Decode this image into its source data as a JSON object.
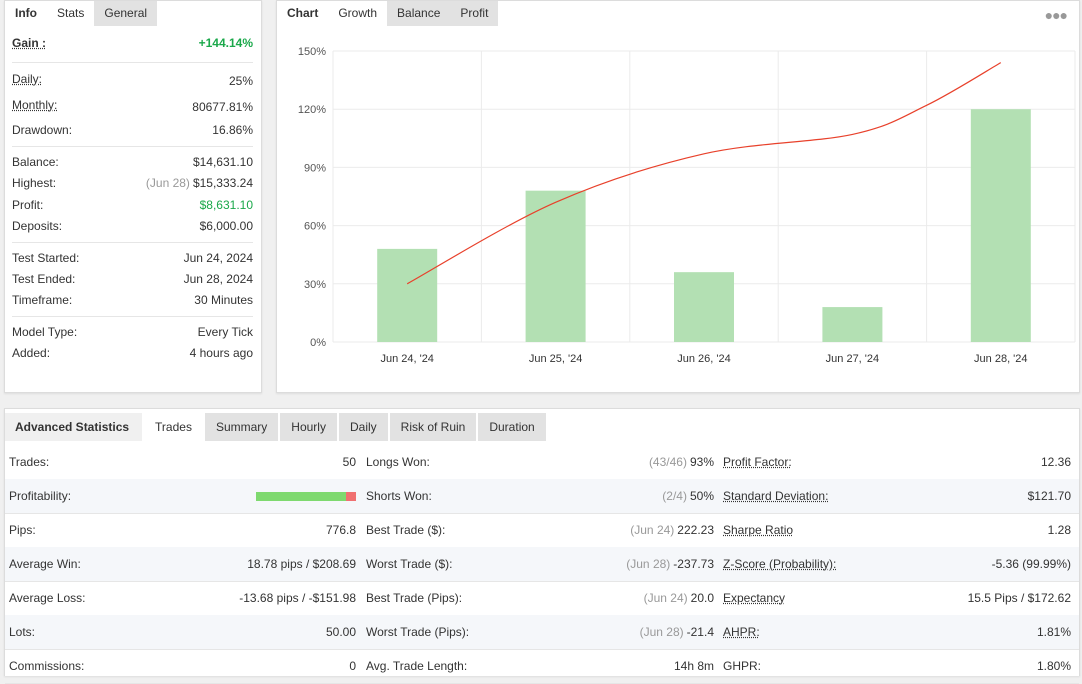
{
  "info_tabs": [
    "Info",
    "Stats",
    "General"
  ],
  "info": {
    "gain_label": "Gain :",
    "gain_value": "+144.14%",
    "daily_label": "Daily:",
    "daily_value": "25%",
    "monthly_label": "Monthly:",
    "monthly_value": "80677.81%",
    "drawdown_label": "Drawdown:",
    "drawdown_value": "16.86%",
    "balance_label": "Balance:",
    "balance_value": "$14,631.10",
    "highest_label": "Highest:",
    "highest_date": "(Jun 28)",
    "highest_value": "$15,333.24",
    "profit_label": "Profit:",
    "profit_value": "$8,631.10",
    "deposits_label": "Deposits:",
    "deposits_value": "$6,000.00",
    "test_started_label": "Test Started:",
    "test_started_value": "Jun 24, 2024",
    "test_ended_label": "Test Ended:",
    "test_ended_value": "Jun 28, 2024",
    "timeframe_label": "Timeframe:",
    "timeframe_value": "30 Minutes",
    "model_type_label": "Model Type:",
    "model_type_value": "Every Tick",
    "added_label": "Added:",
    "added_value": "4 hours ago"
  },
  "chart_tabs": [
    "Chart",
    "Growth",
    "Balance",
    "Profit"
  ],
  "more_icon": "ellipsis-icon",
  "colors": {
    "bar": "#b3e0b3",
    "line": "#e8412b",
    "gain": "#1aa84a",
    "loss_bar": "#f07070",
    "win_bar": "#7ed96f"
  },
  "chart_data": {
    "type": "bar",
    "categories": [
      "Jun 24, '24",
      "Jun 25, '24",
      "Jun 26, '24",
      "Jun 27, '24",
      "Jun 28, '24"
    ],
    "series": [
      {
        "type": "bar",
        "values": [
          48,
          78,
          36,
          18,
          120
        ]
      },
      {
        "type": "line",
        "x": [
          0,
          1,
          2,
          3,
          3.5,
          4
        ],
        "values": [
          30,
          72,
          97,
          107,
          122,
          144
        ]
      }
    ],
    "y_ticks": [
      "150%",
      "120%",
      "90%",
      "60%",
      "30%",
      "0%"
    ],
    "ylim": [
      0,
      150
    ],
    "grid": true
  },
  "stats_tabs": [
    "Advanced Statistics",
    "Trades",
    "Summary",
    "Hourly",
    "Daily",
    "Risk of Ruin",
    "Duration"
  ],
  "stats": {
    "col1": [
      {
        "label": "Trades:",
        "value": "50"
      },
      {
        "label": "Profitability:",
        "value": ""
      },
      {
        "label": "Pips:",
        "value": "776.8"
      },
      {
        "label": "Average Win:",
        "value": "18.78 pips / $208.69"
      },
      {
        "label": "Average Loss:",
        "value": "-13.68 pips / -$151.98"
      },
      {
        "label": "Lots:",
        "value": "50.00"
      },
      {
        "label": "Commissions:",
        "value": "0"
      }
    ],
    "profitability_win_fraction": 0.9,
    "col2": [
      {
        "label": "Longs Won:",
        "sub": "(43/46)",
        "value": "93%"
      },
      {
        "label": "Shorts Won:",
        "sub": "(2/4)",
        "value": "50%"
      },
      {
        "label": "Best Trade ($):",
        "sub": "(Jun 24)",
        "value": "222.23"
      },
      {
        "label": "Worst Trade ($):",
        "sub": "(Jun 28)",
        "value": "-237.73"
      },
      {
        "label": "Best Trade (Pips):",
        "sub": "(Jun 24)",
        "value": "20.0"
      },
      {
        "label": "Worst Trade (Pips):",
        "sub": "(Jun 28)",
        "value": "-21.4"
      },
      {
        "label": "Avg. Trade Length:",
        "sub": "",
        "value": "14h 8m"
      }
    ],
    "col3": [
      {
        "label": "Profit Factor:",
        "value": "12.36"
      },
      {
        "label": "Standard Deviation:",
        "value": "$121.70"
      },
      {
        "label": "Sharpe Ratio",
        "value": "1.28"
      },
      {
        "label": "Z-Score (Probability):",
        "value": "-5.36 (99.99%)"
      },
      {
        "label": "Expectancy",
        "value": "15.5 Pips / $172.62"
      },
      {
        "label": "AHPR:",
        "value": "1.81%"
      },
      {
        "label": "GHPR:",
        "value": "1.80%"
      }
    ]
  }
}
